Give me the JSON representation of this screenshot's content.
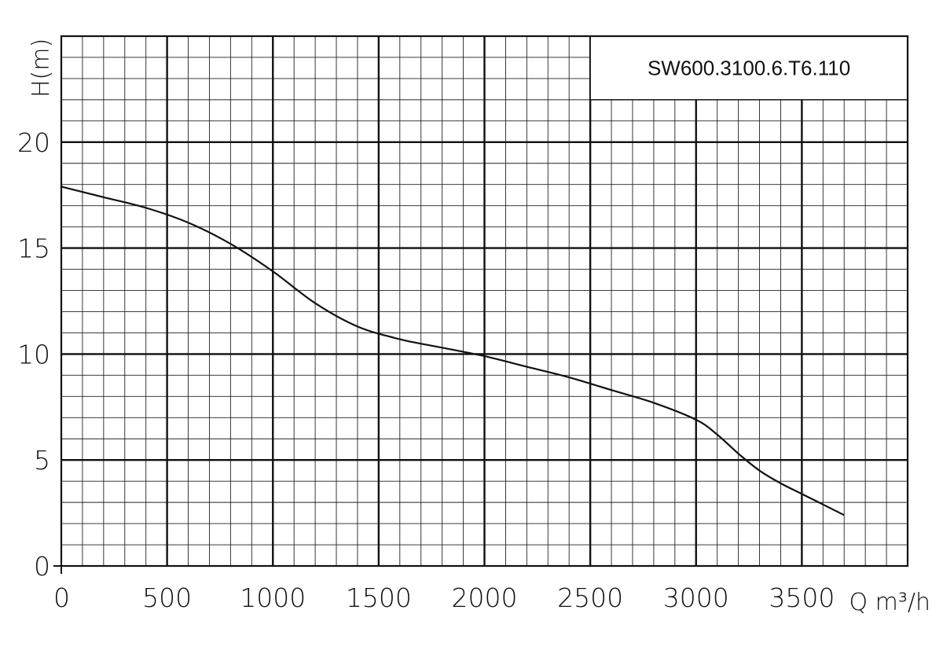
{
  "chart_data": {
    "type": "line",
    "title": "SW600.3100.6.T6.110",
    "xlabel": "Q m³/h",
    "ylabel": "H(m)",
    "xlim": [
      0,
      4000
    ],
    "ylim": [
      0,
      25
    ],
    "x_ticks": [
      0,
      500,
      1000,
      1500,
      2000,
      2500,
      3000,
      3500
    ],
    "x_tick_labels": [
      "0",
      "500",
      "1000",
      "1500",
      "2000",
      "2500",
      "3000",
      "3500"
    ],
    "y_ticks": [
      0,
      5,
      10,
      15,
      20
    ],
    "y_tick_labels": [
      "0",
      "5",
      "10",
      "15",
      "20"
    ],
    "grid": true,
    "series": [
      {
        "x": [
          0,
          200,
          400,
          600,
          800,
          1000,
          1200,
          1400,
          1600,
          1800,
          2000,
          2200,
          2400,
          2600,
          2800,
          3000,
          3100,
          3200,
          3300,
          3400,
          3500,
          3600,
          3700
        ],
        "values": [
          17.9,
          17.4,
          16.9,
          16.2,
          15.2,
          13.9,
          12.4,
          11.3,
          10.7,
          10.3,
          9.9,
          9.4,
          8.9,
          8.3,
          7.7,
          6.9,
          6.2,
          5.3,
          4.5,
          3.9,
          3.4,
          2.9,
          2.4
        ]
      }
    ]
  }
}
